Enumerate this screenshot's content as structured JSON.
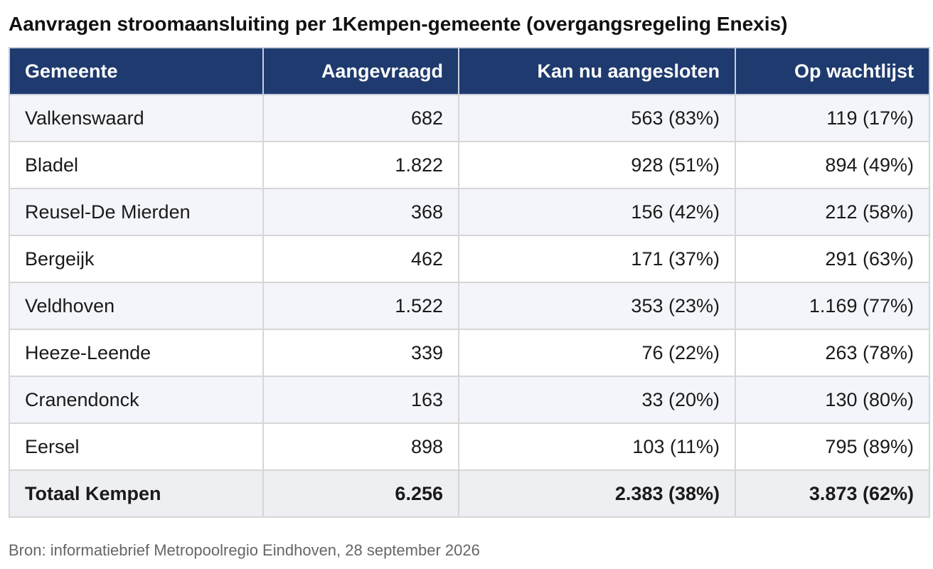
{
  "title": "Aanvragen stroomaansluiting per 1Kempen-gemeente (overgangsregeling Enexis)",
  "headers": {
    "gemeente": "Gemeente",
    "aangevraagd": "Aangevraagd",
    "aangesloten": "Kan nu aangesloten",
    "wachtlijst": "Op wachtlijst"
  },
  "rows": [
    {
      "gemeente": "Valkenswaard",
      "aangevraagd": "682",
      "aangesloten": "563 (83%)",
      "wachtlijst": "119 (17%)"
    },
    {
      "gemeente": "Bladel",
      "aangevraagd": "1.822",
      "aangesloten": "928 (51%)",
      "wachtlijst": "894 (49%)"
    },
    {
      "gemeente": "Reusel-De Mierden",
      "aangevraagd": "368",
      "aangesloten": "156 (42%)",
      "wachtlijst": "212 (58%)"
    },
    {
      "gemeente": "Bergeijk",
      "aangevraagd": "462",
      "aangesloten": "171 (37%)",
      "wachtlijst": "291 (63%)"
    },
    {
      "gemeente": "Veldhoven",
      "aangevraagd": "1.522",
      "aangesloten": "353 (23%)",
      "wachtlijst": "1.169 (77%)"
    },
    {
      "gemeente": "Heeze-Leende",
      "aangevraagd": "339",
      "aangesloten": "76 (22%)",
      "wachtlijst": "263 (78%)"
    },
    {
      "gemeente": "Cranendonck",
      "aangevraagd": "163",
      "aangesloten": "33 (20%)",
      "wachtlijst": "130 (80%)"
    },
    {
      "gemeente": "Eersel",
      "aangevraagd": "898",
      "aangesloten": "103 (11%)",
      "wachtlijst": "795 (89%)"
    }
  ],
  "total": {
    "gemeente": "Totaal Kempen",
    "aangevraagd": "6.256",
    "aangesloten": "2.383 (38%)",
    "wachtlijst": "3.873 (62%)"
  },
  "source": "Bron: informatiebrief Metropoolregio Eindhoven, 28 september 2026",
  "colors": {
    "header_bg": "#1e3a6e",
    "header_text": "#ffffff",
    "row_odd": "#f4f5fa",
    "row_even": "#ffffff",
    "total_bg": "#eeeff2",
    "border": "#d6d6d6",
    "source_text": "#666666"
  }
}
